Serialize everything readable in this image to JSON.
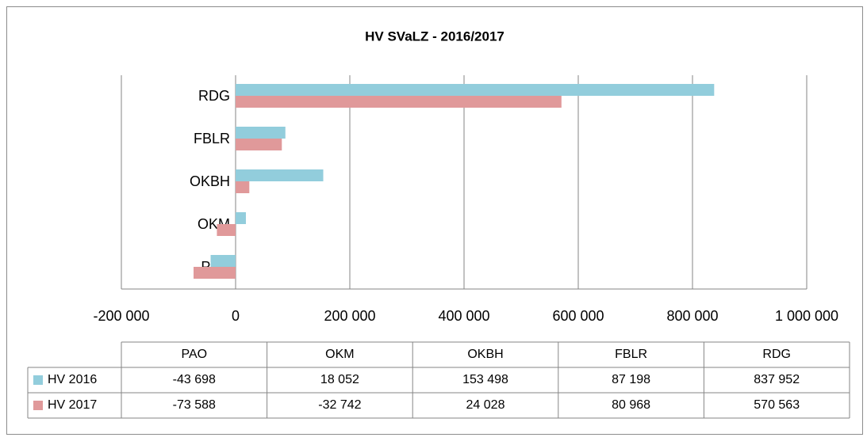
{
  "chart_data": {
    "type": "bar",
    "orientation": "horizontal",
    "title": "HV SVaLZ - 2016/2017",
    "categories": [
      "PAO",
      "OKM",
      "OKBH",
      "FBLR",
      "RDG"
    ],
    "series": [
      {
        "name": "HV 2016",
        "color": "#92cddc",
        "values": [
          -43698,
          18052,
          153498,
          87198,
          837952
        ],
        "value_labels": [
          "-43 698",
          "18 052",
          "153 498",
          "87 198",
          "837 952"
        ]
      },
      {
        "name": "HV 2017",
        "color": "#e0999a",
        "values": [
          -73588,
          -32742,
          24028,
          80968,
          570563
        ],
        "value_labels": [
          "-73 588",
          "-32 742",
          "24 028",
          "80 968",
          "570 563"
        ]
      }
    ],
    "xlim": [
      -200000,
      1000000
    ],
    "xticks": [
      {
        "value": -200000,
        "label": "-200 000"
      },
      0,
      {
        "value": 200000,
        "label": "200 000"
      },
      {
        "value": 400000,
        "label": "400 000"
      },
      {
        "value": 600000,
        "label": "600 000"
      },
      {
        "value": 800000,
        "label": "800 000"
      },
      {
        "value": 1000000,
        "label": "1 000 000"
      }
    ],
    "grid": true
  }
}
